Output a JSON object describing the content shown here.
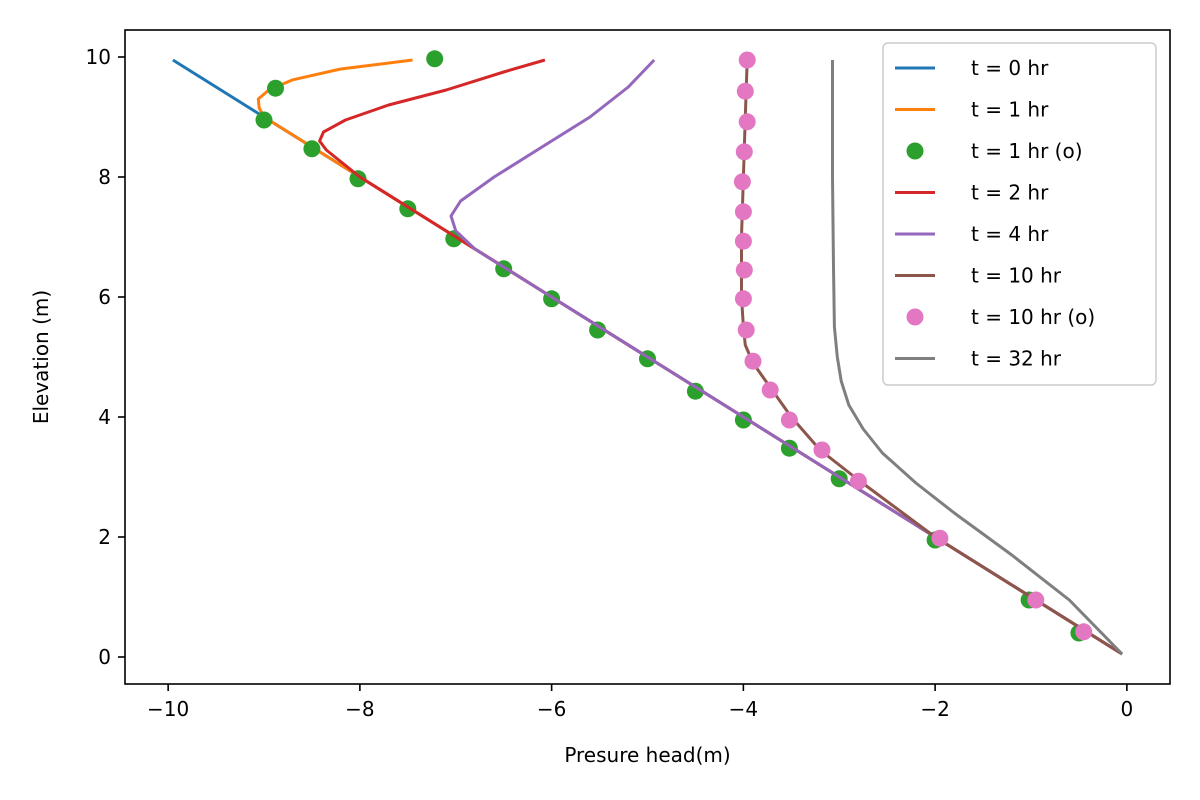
{
  "chart_data": {
    "type": "line",
    "title": "",
    "xlabel": "Presure head(m)",
    "ylabel": "Elevation (m)",
    "xlim": [
      -10.45,
      0.45
    ],
    "ylim": [
      -0.45,
      10.45
    ],
    "xticks": [
      -10,
      -8,
      -6,
      -4,
      -2,
      0
    ],
    "yticks": [
      0,
      2,
      4,
      6,
      8,
      10
    ],
    "grid": false,
    "legend": "upper right",
    "series": [
      {
        "name": "t = 0 hr",
        "style": "line",
        "color": "#1f77b4",
        "x": [
          -9.95,
          -9.0,
          -8.0,
          -7.0,
          -6.0,
          -5.0,
          -4.0,
          -3.0,
          -2.0,
          -1.0,
          -0.05
        ],
        "y": [
          9.95,
          9.0,
          8.0,
          7.0,
          6.0,
          5.0,
          4.0,
          3.0,
          2.0,
          1.0,
          0.05
        ]
      },
      {
        "name": "t = 1 hr",
        "style": "line",
        "color": "#ff7f0e",
        "x": [
          -7.45,
          -8.2,
          -8.7,
          -8.95,
          -9.06,
          -9.05,
          -9.0,
          -8.6,
          -8.0,
          -7.0,
          -6.0,
          -5.0,
          -4.0,
          -3.0,
          -2.0,
          -1.0,
          -0.05
        ],
        "y": [
          9.95,
          9.8,
          9.62,
          9.45,
          9.3,
          9.15,
          9.0,
          8.6,
          8.0,
          7.0,
          6.0,
          5.0,
          4.0,
          3.0,
          2.0,
          1.0,
          0.05
        ]
      },
      {
        "name": "t = 1 hr (o)",
        "style": "marker",
        "color": "#2ca02c",
        "x": [
          -7.22,
          -8.88,
          -9.0,
          -8.5,
          -8.02,
          -7.5,
          -7.02,
          -6.5,
          -6.0,
          -5.52,
          -5.0,
          -4.5,
          -4.0,
          -3.52,
          -3.0,
          -2.0,
          -1.02,
          -0.5
        ],
        "y": [
          9.97,
          9.48,
          8.95,
          8.47,
          7.97,
          7.47,
          6.97,
          6.47,
          5.97,
          5.45,
          4.97,
          4.43,
          3.95,
          3.48,
          2.97,
          1.95,
          0.95,
          0.4
        ]
      },
      {
        "name": "t = 2 hr",
        "style": "line",
        "color": "#d62728",
        "x": [
          -6.07,
          -6.5,
          -7.1,
          -7.7,
          -8.15,
          -8.38,
          -8.42,
          -8.35,
          -8.0,
          -7.0,
          -6.0,
          -5.0,
          -4.0,
          -3.0,
          -2.0,
          -1.0,
          -0.05
        ],
        "y": [
          9.95,
          9.75,
          9.45,
          9.2,
          8.95,
          8.75,
          8.6,
          8.45,
          8.0,
          7.0,
          6.0,
          5.0,
          4.0,
          3.0,
          2.0,
          1.0,
          0.05
        ]
      },
      {
        "name": "t = 4 hr",
        "style": "line",
        "color": "#9467bd",
        "x": [
          -4.93,
          -5.2,
          -5.6,
          -6.1,
          -6.6,
          -6.95,
          -7.05,
          -7.0,
          -6.8,
          -6.0,
          -5.0,
          -4.0,
          -3.0,
          -2.0,
          -1.0,
          -0.05
        ],
        "y": [
          9.95,
          9.5,
          9.0,
          8.5,
          8.0,
          7.6,
          7.35,
          7.1,
          6.8,
          6.0,
          5.0,
          4.0,
          3.0,
          2.0,
          1.0,
          0.05
        ]
      },
      {
        "name": "t = 10 hr",
        "style": "line",
        "color": "#8c564b",
        "x": [
          -3.96,
          -3.98,
          -4.0,
          -4.02,
          -4.02,
          -4.0,
          -3.98,
          -3.9,
          -3.7,
          -3.5,
          -3.2,
          -2.8,
          -2.0,
          -1.0,
          -0.05
        ],
        "y": [
          9.95,
          9.0,
          8.0,
          7.0,
          6.0,
          5.5,
          5.2,
          4.9,
          4.45,
          4.0,
          3.45,
          2.95,
          2.0,
          1.0,
          0.05
        ]
      },
      {
        "name": "t = 10 hr (o)",
        "style": "marker",
        "color": "#e377c2",
        "x": [
          -3.96,
          -3.98,
          -3.96,
          -3.99,
          -4.01,
          -4.0,
          -4.0,
          -3.99,
          -4.0,
          -3.97,
          -3.9,
          -3.72,
          -3.52,
          -3.18,
          -2.8,
          -1.95,
          -0.95,
          -0.45
        ],
        "y": [
          9.95,
          9.43,
          8.92,
          8.42,
          7.92,
          7.42,
          6.93,
          6.45,
          5.97,
          5.45,
          4.93,
          4.45,
          3.95,
          3.45,
          2.93,
          1.98,
          0.95,
          0.42
        ]
      },
      {
        "name": "t = 32 hr",
        "style": "line",
        "color": "#7f7f7f",
        "x": [
          -3.07,
          -3.07,
          -3.06,
          -3.05,
          -3.02,
          -2.98,
          -2.9,
          -2.75,
          -2.55,
          -2.2,
          -1.8,
          -1.2,
          -0.6,
          -0.05
        ],
        "y": [
          9.95,
          8.0,
          6.5,
          5.5,
          5.0,
          4.6,
          4.2,
          3.8,
          3.4,
          2.9,
          2.4,
          1.7,
          0.95,
          0.05
        ]
      }
    ]
  }
}
